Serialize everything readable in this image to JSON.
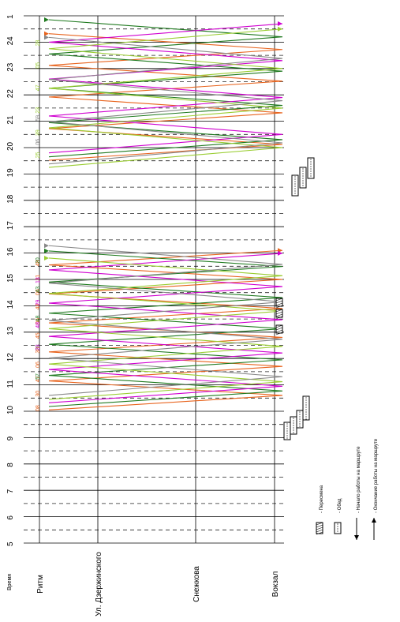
{
  "chart_data": {
    "type": "line",
    "title": "",
    "time_axis_label": "Время",
    "hour_ticks": [
      "5",
      "6",
      "7",
      "8",
      "9",
      "10",
      "11",
      "12",
      "13",
      "14",
      "15",
      "16",
      "17",
      "18",
      "19",
      "20",
      "21",
      "22",
      "23",
      "24",
      "1"
    ],
    "stops": [
      "Ритм",
      "Ул. Дзержинского",
      "Снежкова",
      "Вокзал"
    ],
    "legend": [
      {
        "key": "change",
        "label": "- Пересмена",
        "icon": "hatched-box-icon"
      },
      {
        "key": "lunch",
        "label": "- Обед",
        "icon": "dotted-box-icon"
      },
      {
        "key": "start",
        "label": "- Начало работы на маршруте",
        "icon": "arrow-left-icon"
      },
      {
        "key": "end",
        "label": "- Окончание работы на маршруте",
        "icon": "arrow-right-icon"
      }
    ],
    "series": [
      {
        "color": "#e8641e",
        "departure_minutes": [
          "08",
          "30",
          "47",
          "06",
          "30",
          "45",
          "06",
          "48",
          "06",
          "31",
          "48"
        ]
      },
      {
        "color": "#1f7a1f",
        "departure_minutes": [
          "57",
          "28",
          "48",
          "43",
          "20"
        ]
      },
      {
        "color": "#d000d0",
        "departure_minutes": [
          "23",
          "48",
          "29",
          "13"
        ]
      },
      {
        "color": "#9acd32",
        "departure_minutes": [
          "25",
          "39",
          "23",
          "47",
          "05",
          "28"
        ]
      },
      {
        "color": "#888888",
        "departure_minutes": [
          "06",
          "59"
        ]
      }
    ]
  }
}
